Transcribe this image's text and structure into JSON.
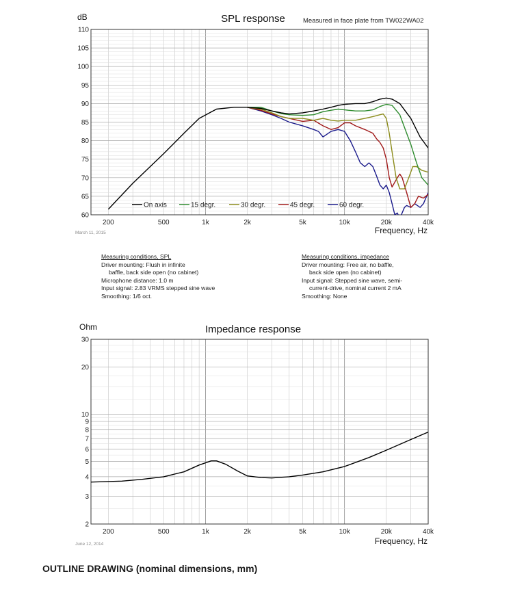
{
  "spl_conditions": {
    "heading": "Measuring conditions, SPL",
    "lines": [
      "Driver mounting: Flush in infinite",
      "baffle, back side open (no cabinet)",
      "Microphone distance: 1.0 m",
      "Input signal: 2.83 VRMS stepped sine wave",
      "Smoothing: 1/6 oct."
    ]
  },
  "impedance_conditions": {
    "heading": "Measuring conditions, impedance",
    "lines": [
      "Driver mounting: Free air, no baffle,",
      "back side open (no cabinet)",
      "Input signal: Stepped sine wave, semi-",
      "current-drive, nominal current 2 mA",
      "Smoothing: None"
    ]
  },
  "outline_title": "OUTLINE DRAWING (nominal dimensions, mm)",
  "chart_data": [
    {
      "type": "line",
      "title": "SPL response",
      "subtitle": "Measured in face plate from TW022WA02",
      "ylabel": "dB",
      "xlabel": "Frequency, Hz",
      "date": "March 11, 2015",
      "xscale": "log",
      "xlim": [
        150,
        40000
      ],
      "ylim": [
        60,
        110
      ],
      "xticks": [
        200,
        500,
        1000,
        2000,
        5000,
        10000,
        20000,
        40000
      ],
      "xticklabels": [
        "200",
        "500",
        "1k",
        "2k",
        "5k",
        "10k",
        "20k",
        "40k"
      ],
      "yticks": [
        60,
        65,
        70,
        75,
        80,
        85,
        90,
        95,
        100,
        105,
        110
      ],
      "legend_position": "bottom",
      "series": [
        {
          "name": "On axis",
          "color": "#000000",
          "points": [
            [
              200,
              61.5
            ],
            [
              300,
              68.5
            ],
            [
              500,
              76.5
            ],
            [
              700,
              82
            ],
            [
              900,
              86
            ],
            [
              1200,
              88.5
            ],
            [
              1600,
              89
            ],
            [
              2000,
              89
            ],
            [
              2500,
              88.7
            ],
            [
              3000,
              88
            ],
            [
              3500,
              87.5
            ],
            [
              4000,
              87.2
            ],
            [
              5000,
              87.5
            ],
            [
              6000,
              88
            ],
            [
              7000,
              88.5
            ],
            [
              8000,
              89
            ],
            [
              9000,
              89.5
            ],
            [
              10000,
              89.8
            ],
            [
              12000,
              90
            ],
            [
              14000,
              90
            ],
            [
              16000,
              90.5
            ],
            [
              18000,
              91.2
            ],
            [
              20000,
              91.5
            ],
            [
              22000,
              91.2
            ],
            [
              25000,
              90
            ],
            [
              30000,
              86
            ],
            [
              35000,
              81
            ],
            [
              40000,
              78
            ]
          ]
        },
        {
          "name": "15 degr.",
          "color": "#2e8b2e",
          "points": [
            [
              2000,
              89
            ],
            [
              2500,
              89
            ],
            [
              3000,
              88
            ],
            [
              3500,
              87.3
            ],
            [
              4000,
              87
            ],
            [
              5000,
              86.8
            ],
            [
              6000,
              87
            ],
            [
              7000,
              87.8
            ],
            [
              8000,
              88.2
            ],
            [
              9000,
              88.5
            ],
            [
              10000,
              88.3
            ],
            [
              12000,
              88
            ],
            [
              14000,
              88
            ],
            [
              16000,
              88.3
            ],
            [
              18000,
              89.2
            ],
            [
              20000,
              89.8
            ],
            [
              22000,
              89.5
            ],
            [
              25000,
              87
            ],
            [
              28000,
              82
            ],
            [
              30000,
              79
            ],
            [
              33000,
              74
            ],
            [
              36000,
              70
            ],
            [
              40000,
              68
            ]
          ]
        },
        {
          "name": "30 degr.",
          "color": "#8b8b1a",
          "points": [
            [
              2000,
              89
            ],
            [
              2500,
              88.5
            ],
            [
              3000,
              87.5
            ],
            [
              3500,
              86.5
            ],
            [
              4000,
              86
            ],
            [
              5000,
              86
            ],
            [
              6000,
              85.5
            ],
            [
              7000,
              86
            ],
            [
              8000,
              85.5
            ],
            [
              9000,
              85.3
            ],
            [
              10000,
              85.5
            ],
            [
              12000,
              85.5
            ],
            [
              14000,
              86
            ],
            [
              16000,
              86.5
            ],
            [
              18000,
              87
            ],
            [
              19000,
              87.2
            ],
            [
              20000,
              86
            ],
            [
              21000,
              82
            ],
            [
              22000,
              77
            ],
            [
              23500,
              70
            ],
            [
              25000,
              67
            ],
            [
              27000,
              67
            ],
            [
              29000,
              70
            ],
            [
              31000,
              73
            ],
            [
              33000,
              73
            ],
            [
              36000,
              72
            ],
            [
              40000,
              71.5
            ]
          ]
        },
        {
          "name": "45 degr.",
          "color": "#a01818",
          "points": [
            [
              2000,
              89
            ],
            [
              2500,
              88.2
            ],
            [
              3000,
              87.2
            ],
            [
              3500,
              86.5
            ],
            [
              4000,
              86
            ],
            [
              5000,
              85.2
            ],
            [
              6000,
              85.5
            ],
            [
              7000,
              84
            ],
            [
              8000,
              83
            ],
            [
              9000,
              83.5
            ],
            [
              10000,
              84.8
            ],
            [
              11000,
              84.8
            ],
            [
              12000,
              84
            ],
            [
              14000,
              83
            ],
            [
              16000,
              82
            ],
            [
              17000,
              80.5
            ],
            [
              18000,
              79.5
            ],
            [
              19000,
              78
            ],
            [
              20000,
              75
            ],
            [
              21000,
              70
            ],
            [
              22000,
              67.5
            ],
            [
              24000,
              70
            ],
            [
              25000,
              71
            ],
            [
              26000,
              70
            ],
            [
              28000,
              66
            ],
            [
              30000,
              62
            ],
            [
              32000,
              63
            ],
            [
              34000,
              65
            ],
            [
              37000,
              64.5
            ],
            [
              40000,
              65.5
            ]
          ]
        },
        {
          "name": "60 degr.",
          "color": "#1a1a8b",
          "points": [
            [
              2000,
              89
            ],
            [
              2500,
              88
            ],
            [
              3000,
              87
            ],
            [
              3500,
              86
            ],
            [
              4000,
              85
            ],
            [
              5000,
              84
            ],
            [
              6000,
              83
            ],
            [
              6500,
              82.5
            ],
            [
              7000,
              81
            ],
            [
              8000,
              82.5
            ],
            [
              9000,
              83
            ],
            [
              10000,
              82.5
            ],
            [
              11000,
              80
            ],
            [
              12000,
              77
            ],
            [
              13000,
              74
            ],
            [
              14000,
              73
            ],
            [
              15000,
              74
            ],
            [
              16000,
              73
            ],
            [
              17000,
              70.5
            ],
            [
              18000,
              68
            ],
            [
              19000,
              67
            ],
            [
              20000,
              68
            ],
            [
              21000,
              66
            ],
            [
              22000,
              63
            ],
            [
              23000,
              60
            ],
            [
              24000,
              60.5
            ],
            [
              25000,
              59
            ],
            [
              27000,
              62
            ],
            [
              28000,
              62.5
            ],
            [
              30000,
              62
            ],
            [
              32000,
              63
            ],
            [
              35000,
              62
            ],
            [
              37000,
              63
            ],
            [
              40000,
              66
            ]
          ]
        }
      ]
    },
    {
      "type": "line",
      "title": "Impedance response",
      "ylabel": "Ohm",
      "xlabel": "Frequency, Hz",
      "date": "June 12, 2014",
      "xscale": "log",
      "yscale": "log",
      "xlim": [
        150,
        40000
      ],
      "ylim": [
        2,
        30
      ],
      "xticks": [
        200,
        500,
        1000,
        2000,
        5000,
        10000,
        20000,
        40000
      ],
      "xticklabels": [
        "200",
        "500",
        "1k",
        "2k",
        "5k",
        "10k",
        "20k",
        "40k"
      ],
      "yticks": [
        2,
        3,
        4,
        5,
        6,
        7,
        8,
        9,
        10,
        20,
        30
      ],
      "series": [
        {
          "name": "Impedance",
          "color": "#000000",
          "points": [
            [
              150,
              3.7
            ],
            [
              250,
              3.75
            ],
            [
              350,
              3.85
            ],
            [
              500,
              4.0
            ],
            [
              700,
              4.3
            ],
            [
              900,
              4.75
            ],
            [
              1100,
              5.05
            ],
            [
              1200,
              5.05
            ],
            [
              1400,
              4.8
            ],
            [
              1700,
              4.35
            ],
            [
              2000,
              4.05
            ],
            [
              2500,
              3.95
            ],
            [
              3000,
              3.93
            ],
            [
              4000,
              4.0
            ],
            [
              5000,
              4.1
            ],
            [
              7000,
              4.3
            ],
            [
              10000,
              4.65
            ],
            [
              15000,
              5.3
            ],
            [
              20000,
              5.9
            ],
            [
              30000,
              6.9
            ],
            [
              40000,
              7.7
            ]
          ]
        }
      ]
    }
  ]
}
